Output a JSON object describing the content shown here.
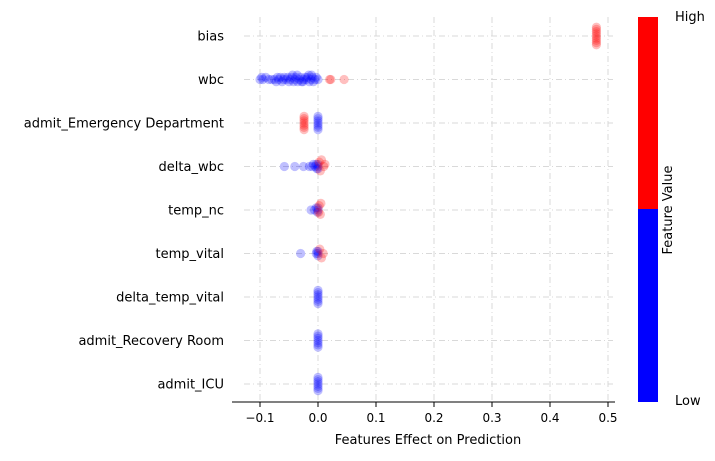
{
  "chart_data": {
    "type": "scatter",
    "title": "",
    "xlabel": "Features Effect on Prediction",
    "ylabel": "",
    "xlim": [
      -0.13,
      0.51
    ],
    "xticks": [
      -0.1,
      0.0,
      0.1,
      0.2,
      0.3,
      0.4,
      0.5
    ],
    "xtick_labels": [
      "−0.1",
      "0.0",
      "0.1",
      "0.2",
      "0.3",
      "0.4",
      "0.5"
    ],
    "grid": true,
    "colors": {
      "low": "#0000ff",
      "high": "#ff0000"
    },
    "colorbar": {
      "label": "Feature Value",
      "high_label": "High",
      "low_label": "Low"
    },
    "features": [
      {
        "name": "bias",
        "points": [
          {
            "x": 0.48,
            "v": "high"
          },
          {
            "x": 0.48,
            "v": "high"
          },
          {
            "x": 0.48,
            "v": "high"
          },
          {
            "x": 0.48,
            "v": "high"
          },
          {
            "x": 0.48,
            "v": "high"
          },
          {
            "x": 0.48,
            "v": "high"
          },
          {
            "x": 0.48,
            "v": "high"
          },
          {
            "x": 0.48,
            "v": "high"
          },
          {
            "x": 0.48,
            "v": "high"
          }
        ]
      },
      {
        "name": "wbc",
        "points": [
          {
            "x": -0.1,
            "v": "low"
          },
          {
            "x": -0.095,
            "v": "low"
          },
          {
            "x": -0.09,
            "v": "low"
          },
          {
            "x": -0.085,
            "v": "low"
          },
          {
            "x": -0.08,
            "v": "low"
          },
          {
            "x": -0.075,
            "v": "low"
          },
          {
            "x": -0.07,
            "v": "low"
          },
          {
            "x": -0.068,
            "v": "low"
          },
          {
            "x": -0.065,
            "v": "low"
          },
          {
            "x": -0.06,
            "v": "low"
          },
          {
            "x": -0.058,
            "v": "low"
          },
          {
            "x": -0.055,
            "v": "low"
          },
          {
            "x": -0.052,
            "v": "low"
          },
          {
            "x": -0.05,
            "v": "low"
          },
          {
            "x": -0.048,
            "v": "low"
          },
          {
            "x": -0.045,
            "v": "low"
          },
          {
            "x": -0.042,
            "v": "low"
          },
          {
            "x": -0.04,
            "v": "low"
          },
          {
            "x": -0.038,
            "v": "low"
          },
          {
            "x": -0.035,
            "v": "low"
          },
          {
            "x": -0.032,
            "v": "low"
          },
          {
            "x": -0.03,
            "v": "low"
          },
          {
            "x": -0.028,
            "v": "low"
          },
          {
            "x": -0.025,
            "v": "low"
          },
          {
            "x": -0.022,
            "v": "low"
          },
          {
            "x": -0.02,
            "v": "low"
          },
          {
            "x": -0.018,
            "v": "low"
          },
          {
            "x": -0.015,
            "v": "low"
          },
          {
            "x": -0.012,
            "v": "low"
          },
          {
            "x": -0.01,
            "v": "low"
          },
          {
            "x": -0.008,
            "v": "low"
          },
          {
            "x": -0.005,
            "v": "low"
          },
          {
            "x": -0.003,
            "v": "low"
          },
          {
            "x": 0.0,
            "v": "low"
          },
          {
            "x": -0.062,
            "v": "low"
          },
          {
            "x": -0.044,
            "v": "low"
          },
          {
            "x": -0.036,
            "v": "low"
          },
          {
            "x": -0.026,
            "v": "low"
          },
          {
            "x": -0.016,
            "v": "low"
          },
          {
            "x": -0.011,
            "v": "low"
          },
          {
            "x": -0.097,
            "v": "low"
          },
          {
            "x": -0.072,
            "v": "low"
          },
          {
            "x": 0.02,
            "v": "high"
          },
          {
            "x": 0.022,
            "v": "high"
          },
          {
            "x": 0.045,
            "v": "high"
          }
        ]
      },
      {
        "name": "admit_Emergency Department",
        "points": [
          {
            "x": -0.024,
            "v": "high"
          },
          {
            "x": -0.024,
            "v": "high"
          },
          {
            "x": -0.024,
            "v": "high"
          },
          {
            "x": -0.024,
            "v": "high"
          },
          {
            "x": -0.024,
            "v": "high"
          },
          {
            "x": -0.024,
            "v": "high"
          },
          {
            "x": -0.024,
            "v": "high"
          },
          {
            "x": 0.0,
            "v": "low"
          },
          {
            "x": 0.0,
            "v": "low"
          },
          {
            "x": 0.0,
            "v": "low"
          },
          {
            "x": 0.0,
            "v": "low"
          },
          {
            "x": 0.0,
            "v": "low"
          },
          {
            "x": 0.0,
            "v": "low"
          },
          {
            "x": 0.0,
            "v": "low"
          }
        ]
      },
      {
        "name": "delta_wbc",
        "points": [
          {
            "x": -0.058,
            "v": "low"
          },
          {
            "x": -0.04,
            "v": "low"
          },
          {
            "x": -0.025,
            "v": "low"
          },
          {
            "x": -0.015,
            "v": "low"
          },
          {
            "x": -0.01,
            "v": "low"
          },
          {
            "x": -0.008,
            "v": "low"
          },
          {
            "x": -0.005,
            "v": "low"
          },
          {
            "x": -0.003,
            "v": "low"
          },
          {
            "x": 0.0,
            "v": "low"
          },
          {
            "x": 0.0,
            "v": "low"
          },
          {
            "x": 0.0,
            "v": "low"
          },
          {
            "x": -0.002,
            "v": "low"
          },
          {
            "x": 0.002,
            "v": "high"
          },
          {
            "x": 0.004,
            "v": "high"
          },
          {
            "x": 0.006,
            "v": "high"
          },
          {
            "x": 0.01,
            "v": "high"
          },
          {
            "x": 0.012,
            "v": "high"
          }
        ]
      },
      {
        "name": "temp_nc",
        "points": [
          {
            "x": -0.012,
            "v": "low"
          },
          {
            "x": -0.006,
            "v": "low"
          },
          {
            "x": -0.003,
            "v": "low"
          },
          {
            "x": -0.001,
            "v": "low"
          },
          {
            "x": 0.0,
            "v": "low"
          },
          {
            "x": 0.0,
            "v": "low"
          },
          {
            "x": 0.001,
            "v": "high"
          },
          {
            "x": 0.002,
            "v": "high"
          },
          {
            "x": 0.004,
            "v": "high"
          },
          {
            "x": 0.005,
            "v": "high"
          }
        ]
      },
      {
        "name": "temp_vital",
        "points": [
          {
            "x": -0.03,
            "v": "low"
          },
          {
            "x": -0.003,
            "v": "low"
          },
          {
            "x": -0.002,
            "v": "low"
          },
          {
            "x": 0.0,
            "v": "low"
          },
          {
            "x": 0.0,
            "v": "low"
          },
          {
            "x": 0.0,
            "v": "low"
          },
          {
            "x": 0.003,
            "v": "high"
          },
          {
            "x": 0.006,
            "v": "high"
          },
          {
            "x": 0.009,
            "v": "high"
          }
        ]
      },
      {
        "name": "delta_temp_vital",
        "points": [
          {
            "x": 0.0,
            "v": "low"
          },
          {
            "x": 0.0,
            "v": "low"
          },
          {
            "x": 0.0,
            "v": "low"
          },
          {
            "x": 0.0,
            "v": "low"
          },
          {
            "x": 0.0,
            "v": "low"
          },
          {
            "x": 0.0,
            "v": "low"
          },
          {
            "x": 0.0,
            "v": "low"
          }
        ]
      },
      {
        "name": "admit_Recovery Room",
        "points": [
          {
            "x": 0.0,
            "v": "low"
          },
          {
            "x": 0.0,
            "v": "low"
          },
          {
            "x": 0.0,
            "v": "low"
          },
          {
            "x": 0.0,
            "v": "low"
          },
          {
            "x": 0.0,
            "v": "low"
          },
          {
            "x": 0.0,
            "v": "low"
          },
          {
            "x": 0.0,
            "v": "low"
          }
        ]
      },
      {
        "name": "admit_ICU",
        "points": [
          {
            "x": 0.0,
            "v": "low"
          },
          {
            "x": 0.0,
            "v": "low"
          },
          {
            "x": 0.0,
            "v": "low"
          },
          {
            "x": 0.0,
            "v": "low"
          },
          {
            "x": 0.0,
            "v": "low"
          },
          {
            "x": 0.0,
            "v": "low"
          },
          {
            "x": 0.0,
            "v": "low"
          }
        ]
      }
    ]
  }
}
